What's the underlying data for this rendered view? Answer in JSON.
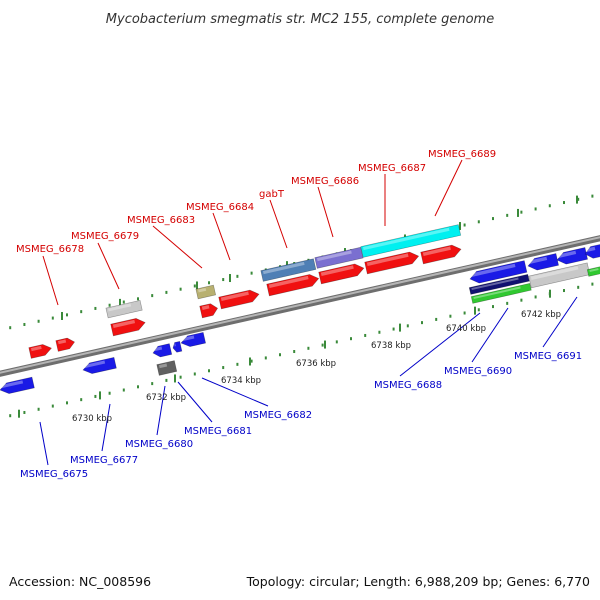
{
  "header": {
    "title": "Mycobacterium smegmatis str. MC2 155, complete genome"
  },
  "footer": {
    "accession": "Accession: NC_008596",
    "summary": "Topology: circular; Length: 6,988,209 bp; Genes: 6,770"
  },
  "colors": {
    "forward_label": "#d40000",
    "reverse_label": "#0000c8",
    "tick": "#3a8a3a",
    "backbone": "#8c8c8c"
  },
  "axis": {
    "tick_labels": [
      "6730 kbp",
      "6732 kbp",
      "6734 kbp",
      "6736 kbp",
      "6738 kbp",
      "6740 kbp",
      "6742 kbp"
    ]
  },
  "genes_forward": [
    {
      "label": "MSMEG_6678"
    },
    {
      "label": "MSMEG_6679"
    },
    {
      "label": "MSMEG_6683"
    },
    {
      "label": "MSMEG_6684"
    },
    {
      "label": "gabT"
    },
    {
      "label": "MSMEG_6686"
    },
    {
      "label": "MSMEG_6687"
    },
    {
      "label": "MSMEG_6689"
    }
  ],
  "genes_reverse": [
    {
      "label": "MSMEG_6675"
    },
    {
      "label": "MSMEG_6677"
    },
    {
      "label": "MSMEG_6680"
    },
    {
      "label": "MSMEG_6681"
    },
    {
      "label": "MSMEG_6682"
    },
    {
      "label": "MSMEG_6688"
    },
    {
      "label": "MSMEG_6690"
    },
    {
      "label": "MSMEG_6691"
    }
  ]
}
